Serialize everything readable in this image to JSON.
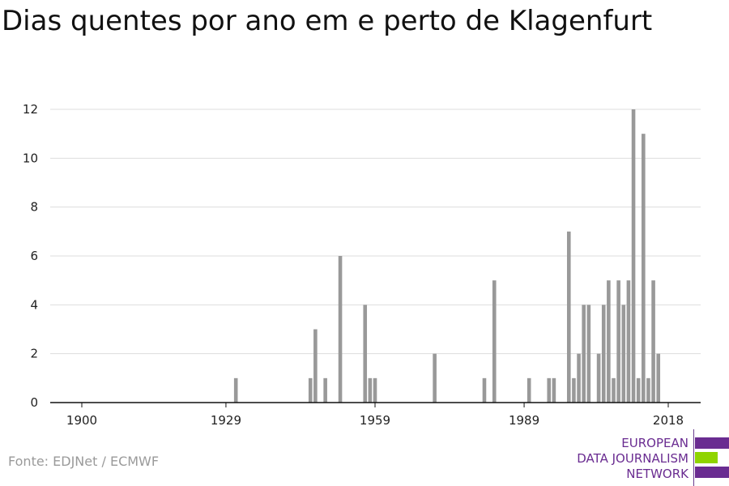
{
  "title": "Dias quentes por ano em e perto de Klagenfurt",
  "source": "Fonte: EDJNet / ECMWF",
  "logo": {
    "line1": "EUROPEAN",
    "line2": "DATA JOURNALISM",
    "line3": "NETWORK",
    "colors": {
      "purple": "#6a2c91",
      "green": "#8fd400"
    }
  },
  "chart_data": {
    "type": "bar",
    "title": "Dias quentes por ano em e perto de Klagenfurt",
    "xlabel": "",
    "ylabel": "",
    "xlim": [
      1900,
      2018
    ],
    "ylim": [
      0,
      12
    ],
    "x_ticks": [
      "1900",
      "1929",
      "1959",
      "1989",
      "2018"
    ],
    "y_ticks": [
      "0",
      "2",
      "4",
      "6",
      "8",
      "10",
      "12"
    ],
    "grid": true,
    "bar_color": "#999999",
    "x": [
      1931,
      1946,
      1947,
      1949,
      1952,
      1957,
      1958,
      1959,
      1971,
      1981,
      1983,
      1990,
      1994,
      1995,
      1998,
      1999,
      2000,
      2001,
      2002,
      2004,
      2005,
      2006,
      2007,
      2008,
      2009,
      2010,
      2011,
      2012,
      2013,
      2014,
      2015,
      2016,
      2017
    ],
    "values": [
      1,
      1,
      3,
      1,
      6,
      4,
      1,
      1,
      2,
      1,
      5,
      1,
      1,
      1,
      7,
      1,
      2,
      4,
      4,
      2,
      4,
      5,
      1,
      5,
      4,
      5,
      12,
      1,
      11,
      1,
      5,
      2,
      0
    ]
  }
}
